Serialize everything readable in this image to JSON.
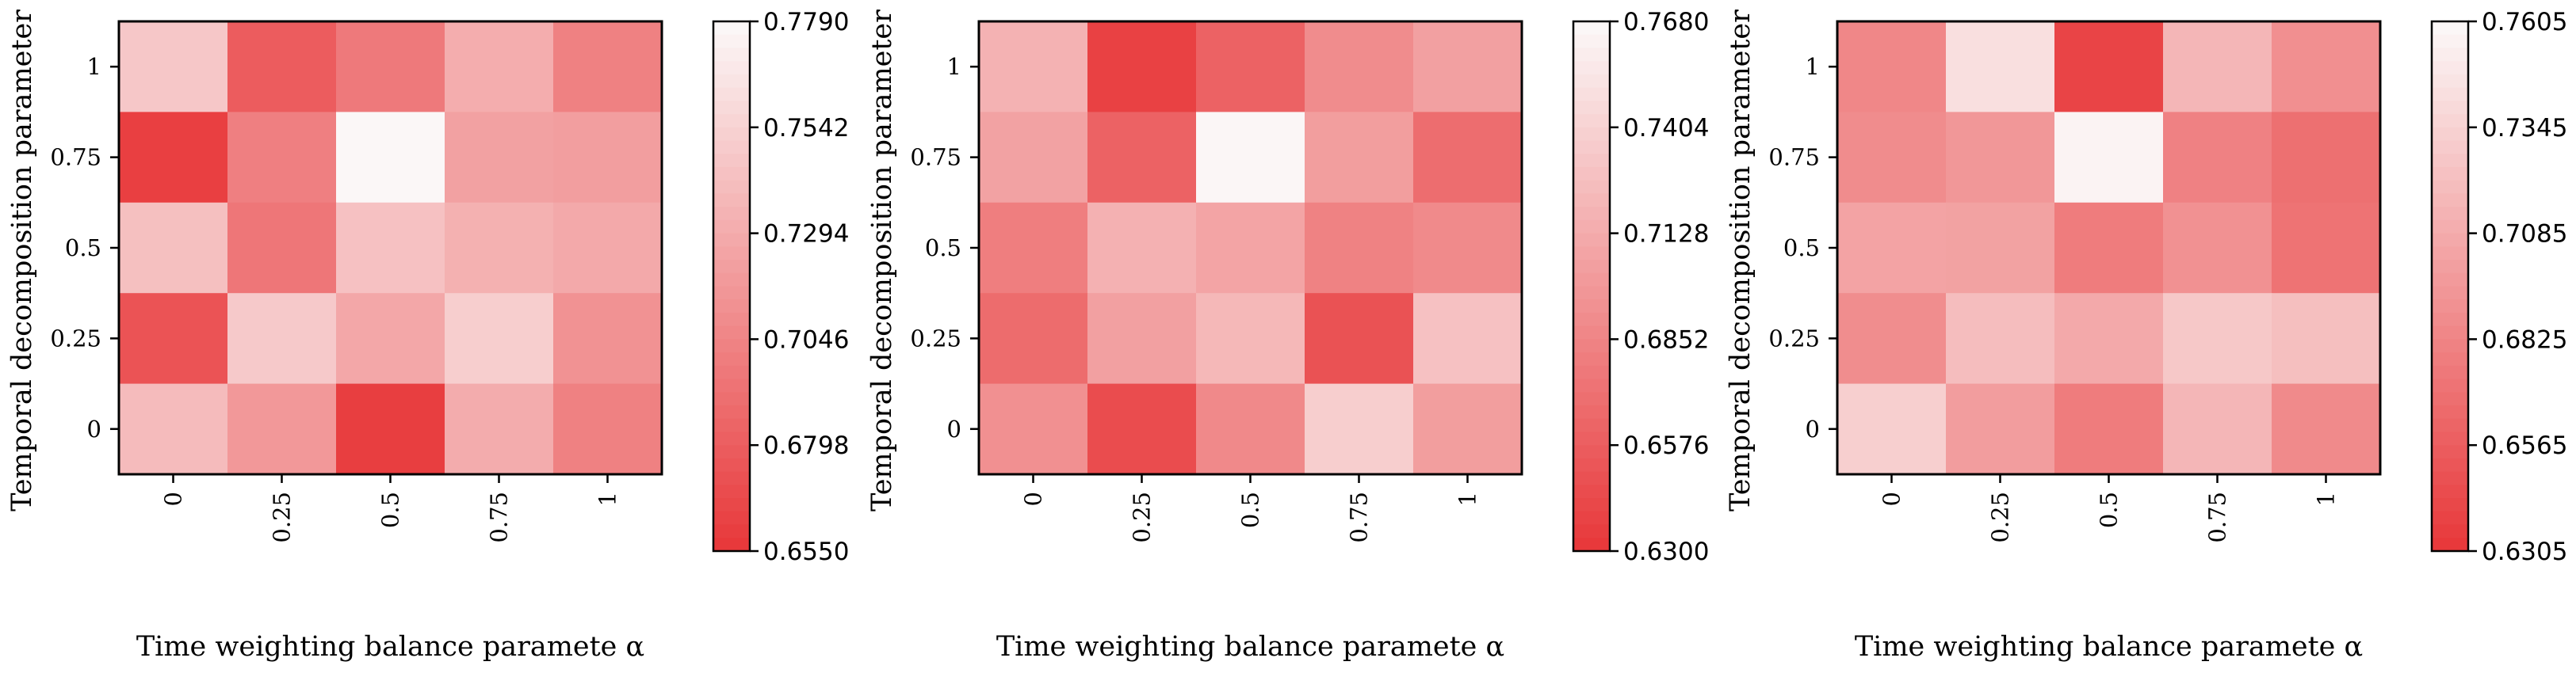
{
  "colors": {
    "high": "#fbf7f7",
    "low": "#e8393b",
    "frame": "#000000"
  },
  "chart_data": [
    {
      "type": "heatmap",
      "xlabel": "Time weighting balance paramete α",
      "ylabel": "Temporal decomposition parameter γ",
      "x_tick_labels": [
        "0",
        "0.25",
        "0.5",
        "0.75",
        "1"
      ],
      "y_tick_labels": [
        "1",
        "0.75",
        "0.5",
        "0.25",
        "0"
      ],
      "values": [
        [
          0.748,
          0.678,
          0.697,
          0.731,
          0.702
        ],
        [
          0.659,
          0.701,
          0.779,
          0.723,
          0.721
        ],
        [
          0.743,
          0.695,
          0.744,
          0.733,
          0.728
        ],
        [
          0.672,
          0.749,
          0.727,
          0.752,
          0.713
        ],
        [
          0.74,
          0.717,
          0.658,
          0.73,
          0.702
        ]
      ],
      "colorbar": {
        "min": 0.655,
        "max": 0.779,
        "ticks": [
          "0.7790",
          "0.7542",
          "0.7294",
          "0.7046",
          "0.6798",
          "0.6550"
        ]
      }
    },
    {
      "type": "heatmap",
      "xlabel": "Time weighting balance paramete α",
      "ylabel": "Temporal decomposition parameter γ",
      "x_tick_labels": [
        "0",
        "0.25",
        "0.5",
        "0.75",
        "1"
      ],
      "y_tick_labels": [
        "1",
        "0.75",
        "0.5",
        "0.25",
        "0"
      ],
      "values": [
        [
          0.718,
          0.636,
          0.66,
          0.69,
          0.705
        ],
        [
          0.706,
          0.66,
          0.767,
          0.703,
          0.668
        ],
        [
          0.68,
          0.717,
          0.708,
          0.683,
          0.689
        ],
        [
          0.667,
          0.705,
          0.722,
          0.648,
          0.729
        ],
        [
          0.693,
          0.644,
          0.688,
          0.738,
          0.703
        ]
      ],
      "colorbar": {
        "min": 0.63,
        "max": 0.768,
        "ticks": [
          "0.7680",
          "0.7404",
          "0.7128",
          "0.6852",
          "0.6576",
          "0.6300"
        ]
      }
    },
    {
      "type": "heatmap",
      "xlabel": "Time weighting balance paramete α",
      "ylabel": "Temporal decomposition parameter γ",
      "x_tick_labels": [
        "0",
        "0.25",
        "0.5",
        "0.75",
        "1"
      ],
      "y_tick_labels": [
        "1",
        "0.75",
        "0.5",
        "0.25",
        "0"
      ],
      "values": [
        [
          0.684,
          0.744,
          0.638,
          0.716,
          0.689
        ],
        [
          0.687,
          0.695,
          0.758,
          0.68,
          0.668
        ],
        [
          0.703,
          0.702,
          0.676,
          0.691,
          0.67
        ],
        [
          0.688,
          0.721,
          0.707,
          0.728,
          0.722
        ],
        [
          0.733,
          0.699,
          0.676,
          0.716,
          0.686
        ]
      ],
      "colorbar": {
        "min": 0.6305,
        "max": 0.7605,
        "ticks": [
          "0.7605",
          "0.7345",
          "0.7085",
          "0.6825",
          "0.6565",
          "0.6305"
        ]
      }
    }
  ]
}
